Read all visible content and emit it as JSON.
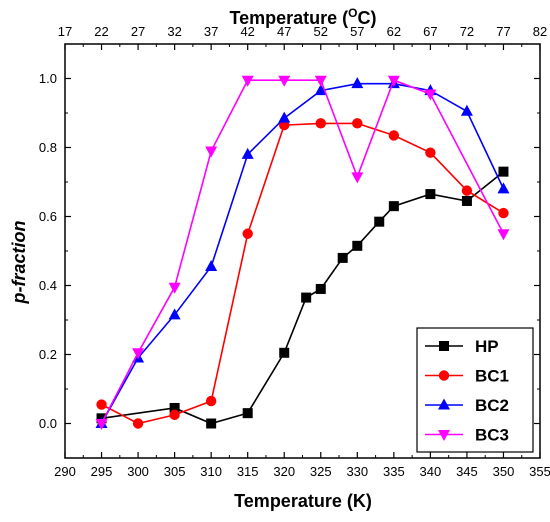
{
  "chart_data": {
    "type": "line",
    "xlabel": "Temperature (K)",
    "ylabel": "p-fraction",
    "top_xlabel": "Temperature (",
    "top_xlabel_sup": "O",
    "top_xlabel_end": "C)",
    "xlim": [
      290,
      355
    ],
    "ylim": [
      -0.1,
      1.1
    ],
    "x_ticks": [
      290,
      295,
      300,
      305,
      310,
      315,
      320,
      325,
      330,
      335,
      340,
      345,
      350,
      355
    ],
    "top_ticks": [
      17,
      22,
      27,
      32,
      37,
      42,
      47,
      52,
      57,
      62,
      67,
      72,
      77,
      82
    ],
    "y_ticks": [
      0.0,
      0.2,
      0.4,
      0.6,
      0.8,
      1.0
    ],
    "y_tick_labels": [
      "0.0",
      "0.2",
      "0.4",
      "0.6",
      "0.8",
      "1.0"
    ],
    "legend_position": "bottom-right",
    "series": [
      {
        "name": "HP",
        "color": "#000000",
        "marker": "square",
        "x": [
          295,
          305,
          310,
          315,
          320,
          323,
          325,
          328,
          330,
          333,
          335,
          340,
          345,
          350
        ],
        "y": [
          0.015,
          0.045,
          0.0,
          0.03,
          0.205,
          0.365,
          0.39,
          0.48,
          0.515,
          0.585,
          0.63,
          0.665,
          0.645,
          0.73
        ]
      },
      {
        "name": "BC1",
        "color": "#ff0000",
        "marker": "circle",
        "x": [
          295,
          300,
          305,
          310,
          315,
          320,
          325,
          330,
          335,
          340,
          345,
          350
        ],
        "y": [
          0.055,
          0.0,
          0.025,
          0.065,
          0.55,
          0.865,
          0.87,
          0.87,
          0.835,
          0.785,
          0.675,
          0.61
        ]
      },
      {
        "name": "BC2",
        "color": "#0000ff",
        "marker": "triangle-up",
        "x": [
          295,
          300,
          305,
          310,
          315,
          320,
          325,
          330,
          335,
          340,
          345,
          350
        ],
        "y": [
          0.0,
          0.19,
          0.315,
          0.455,
          0.78,
          0.885,
          0.965,
          0.985,
          0.985,
          0.965,
          0.905,
          0.68
        ]
      },
      {
        "name": "BC3",
        "color": "#ff00ff",
        "marker": "triangle-down",
        "x": [
          295,
          300,
          305,
          310,
          315,
          320,
          325,
          330,
          335,
          340,
          350
        ],
        "y": [
          0.0,
          0.205,
          0.395,
          0.79,
          0.995,
          0.995,
          0.995,
          0.715,
          0.995,
          0.955,
          0.55
        ]
      }
    ]
  }
}
